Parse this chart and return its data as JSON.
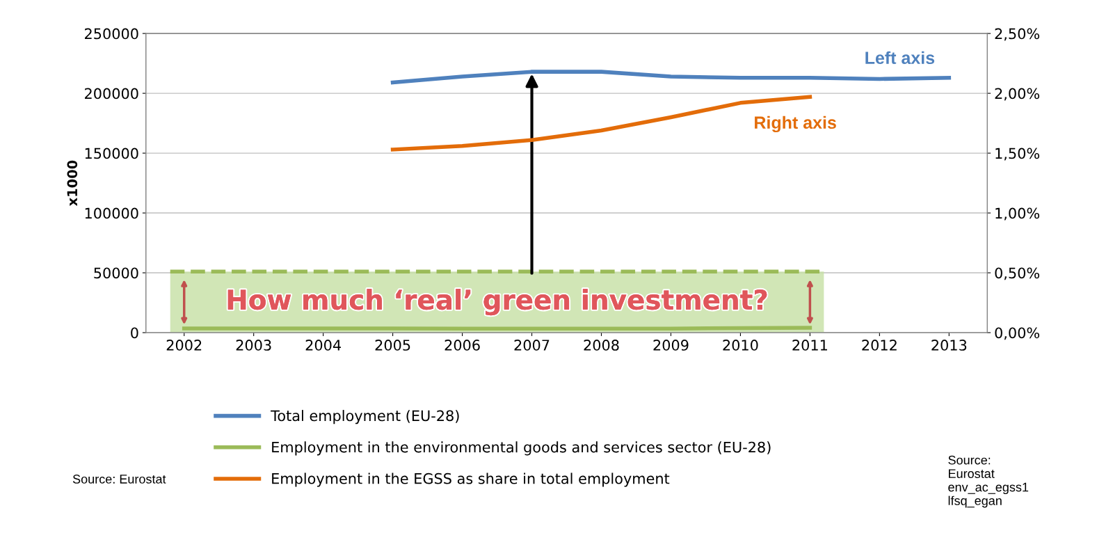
{
  "chart_data": {
    "type": "line",
    "ylabel": "x1000",
    "categories": [
      "2002",
      "2003",
      "2004",
      "2005",
      "2006",
      "2007",
      "2008",
      "2009",
      "2010",
      "2011",
      "2012",
      "2013"
    ],
    "series": [
      {
        "name": "Total employment (EU-28)",
        "color": "#4f81bd",
        "values": [
          null,
          null,
          null,
          209000,
          214000,
          218000,
          218000,
          214000,
          213000,
          213000,
          212000,
          213000
        ]
      },
      {
        "name": "Employment in the environmental goods and services sector (EU-28)",
        "color": "#9bbb59",
        "values": [
          3500,
          3500,
          3500,
          3500,
          3400,
          3300,
          3300,
          3400,
          3800,
          4100,
          null,
          null
        ]
      },
      {
        "name": "Employment in the EGSS as share in total employment",
        "color": "#e36c09",
        "axis": "y2",
        "values": [
          null,
          null,
          null,
          1.53,
          1.56,
          1.61,
          1.69,
          1.8,
          1.92,
          1.97,
          null,
          null
        ]
      }
    ],
    "ylim": [
      0,
      250000
    ],
    "yticks": [
      0,
      50000,
      100000,
      150000,
      200000,
      250000
    ],
    "y2lim": [
      0,
      2.5
    ],
    "y2ticks": [
      {
        "value": 0,
        "label": "0,00%"
      },
      {
        "value": 0.5,
        "label": "0,50%"
      },
      {
        "value": 1,
        "label": "1,00%"
      },
      {
        "value": 1.5,
        "label": "1,50%"
      },
      {
        "value": 2,
        "label": "2,00%"
      },
      {
        "value": 2.5,
        "label": "2,50%"
      }
    ],
    "grid": "y",
    "legend": "bottom",
    "marker": "none",
    "line_style": "solid",
    "bands": [
      {
        "axis": "y",
        "from": 0,
        "to": 51000,
        "label": "How much ‘real’ green investment?",
        "color": "#c6e0a4"
      }
    ],
    "ref_lines": [
      {
        "axis": "y",
        "value": 51000,
        "label": null,
        "color": "#9bbb59",
        "line_style": "dashed"
      }
    ],
    "annotations": [
      "Left axis",
      "Right axis",
      "Source: Eurostat",
      "Source:\nEurostat\nenv_ac_egss1\nlfsq_egan"
    ]
  }
}
